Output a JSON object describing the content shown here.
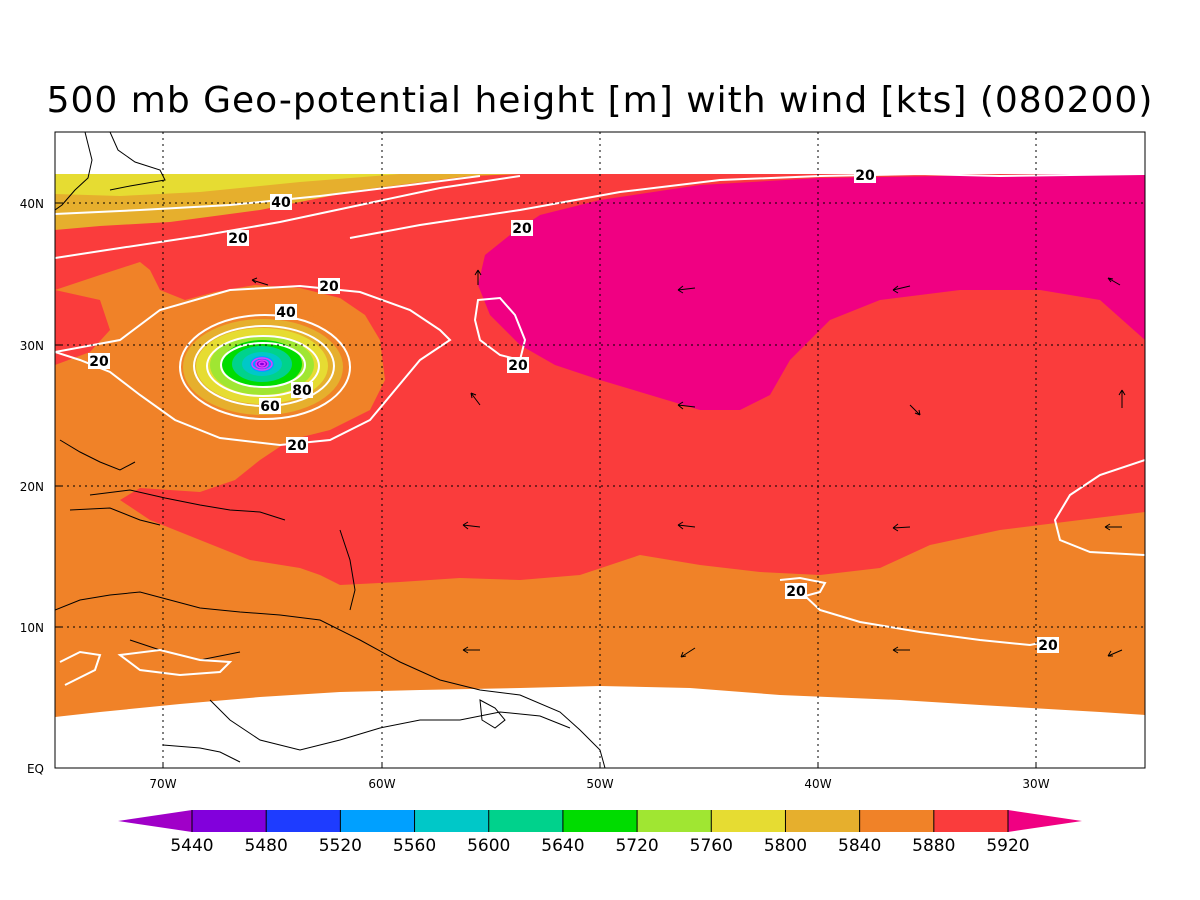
{
  "title": "500 mb Geo-potential height [m] with wind [kts] (080200)",
  "lat_ticks": [
    "40N",
    "30N",
    "20N",
    "10N",
    "EQ"
  ],
  "lon_ticks": [
    "70W",
    "60W",
    "50W",
    "40W",
    "30W"
  ],
  "colorbar": {
    "levels": [
      "5440",
      "5480",
      "5520",
      "5560",
      "5600",
      "5640",
      "5720",
      "5760",
      "5800",
      "5840",
      "5880",
      "5920"
    ],
    "colors": [
      "#a000c8",
      "#8200dc",
      "#1e3cff",
      "#00a0ff",
      "#00c8c8",
      "#00d28c",
      "#00dc00",
      "#a0e632",
      "#e6dc32",
      "#e6af2d",
      "#f08228",
      "#fa3c3c",
      "#f00082"
    ]
  },
  "wind_speed_labels": [
    "40",
    "20",
    "20",
    "20",
    "40",
    "20",
    "20",
    "80",
    "60",
    "20",
    "20",
    "20",
    "20"
  ],
  "colors": {
    "orange": "#f08228",
    "red": "#fa3c3c",
    "magenta": "#f00082",
    "gold": "#e6af2d",
    "yellow": "#e6dc32",
    "contour": "#ffffff"
  }
}
